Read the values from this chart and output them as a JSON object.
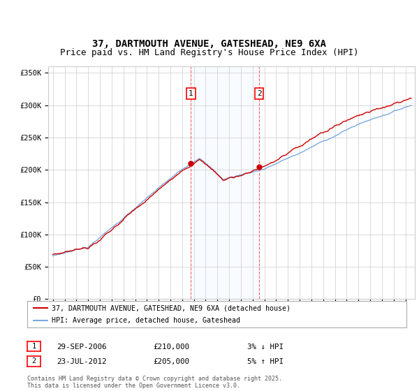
{
  "title": "37, DARTMOUTH AVENUE, GATESHEAD, NE9 6XA",
  "subtitle": "Price paid vs. HM Land Registry's House Price Index (HPI)",
  "ylabel_ticks": [
    "£0",
    "£50K",
    "£100K",
    "£150K",
    "£200K",
    "£250K",
    "£300K",
    "£350K"
  ],
  "ylim": [
    0,
    360000
  ],
  "yticks": [
    0,
    50000,
    100000,
    150000,
    200000,
    250000,
    300000,
    350000
  ],
  "legend_line1": "37, DARTMOUTH AVENUE, GATESHEAD, NE9 6XA (detached house)",
  "legend_line2": "HPI: Average price, detached house, Gateshead",
  "annotation1_label": "1",
  "annotation1_date": "29-SEP-2006",
  "annotation1_price": "£210,000",
  "annotation1_hpi": "3% ↓ HPI",
  "annotation2_label": "2",
  "annotation2_date": "23-JUL-2012",
  "annotation2_price": "£205,000",
  "annotation2_hpi": "5% ↑ HPI",
  "footer": "Contains HM Land Registry data © Crown copyright and database right 2025.\nThis data is licensed under the Open Government Licence v3.0.",
  "sale1_year": 2006.75,
  "sale1_value": 210000,
  "sale2_year": 2012.56,
  "sale2_value": 205000,
  "line_color_red": "#cc0000",
  "line_color_blue": "#7aaadd",
  "background_color": "#ffffff",
  "grid_color": "#cccccc",
  "shade_color": "#ddeeff",
  "title_fontsize": 10,
  "subtitle_fontsize": 9
}
